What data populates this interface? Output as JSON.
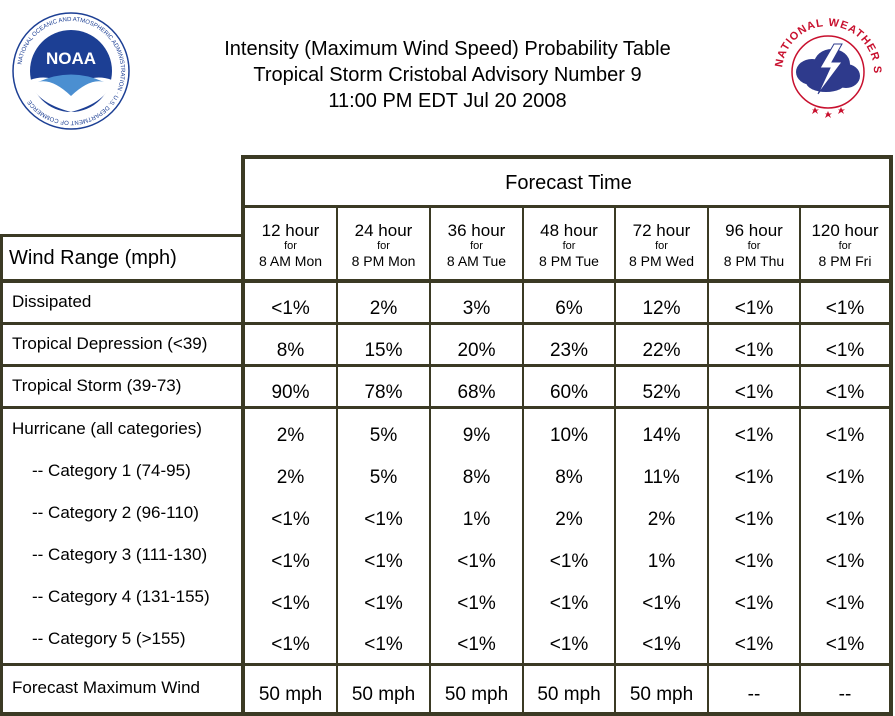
{
  "header": {
    "line1": "Intensity (Maximum Wind Speed) Probability Table",
    "line2": "Tropical Storm Cristobal Advisory Number 9",
    "line3": "11:00 PM EDT Jul 20 2008"
  },
  "logos": {
    "noaa_text": "NOAA",
    "noaa_ring": "NATIONAL OCEANIC AND ATMOSPHERIC ADMINISTRATION · U.S. DEPARTMENT OF COMMERCE",
    "nws_ring": "NATIONAL WEATHER SERVICE"
  },
  "table": {
    "forecast_time_label": "Forecast Time",
    "wind_range_label": "Wind Range (mph)",
    "columns": [
      {
        "hour": "12 hour",
        "for": "for",
        "when": "8 AM Mon"
      },
      {
        "hour": "24 hour",
        "for": "for",
        "when": "8 PM Mon"
      },
      {
        "hour": "36 hour",
        "for": "for",
        "when": "8 AM Tue"
      },
      {
        "hour": "48 hour",
        "for": "for",
        "when": "8 PM Tue"
      },
      {
        "hour": "72 hour",
        "for": "for",
        "when": "8 PM Wed"
      },
      {
        "hour": "96 hour",
        "for": "for",
        "when": "8 PM Thu"
      },
      {
        "hour": "120 hour",
        "for": "for",
        "when": "8 PM Fri"
      }
    ],
    "rows": [
      {
        "label": "Dissipated",
        "values": [
          "<1%",
          "2%",
          "3%",
          "6%",
          "12%",
          "<1%",
          "<1%"
        ]
      },
      {
        "label": "Tropical Depression (<39)",
        "values": [
          "8%",
          "15%",
          "20%",
          "23%",
          "22%",
          "<1%",
          "<1%"
        ]
      },
      {
        "label": "Tropical Storm (39-73)",
        "values": [
          "90%",
          "78%",
          "68%",
          "60%",
          "52%",
          "<1%",
          "<1%"
        ]
      },
      {
        "label": "Hurricane (all categories)",
        "values": [
          "2%",
          "5%",
          "9%",
          "10%",
          "14%",
          "<1%",
          "<1%"
        ]
      },
      {
        "label": "-- Category 1 (74-95)",
        "values": [
          "2%",
          "5%",
          "8%",
          "8%",
          "11%",
          "<1%",
          "<1%"
        ]
      },
      {
        "label": "-- Category 2 (96-110)",
        "values": [
          "<1%",
          "<1%",
          "1%",
          "2%",
          "2%",
          "<1%",
          "<1%"
        ]
      },
      {
        "label": "-- Category 3 (111-130)",
        "values": [
          "<1%",
          "<1%",
          "<1%",
          "<1%",
          "1%",
          "<1%",
          "<1%"
        ]
      },
      {
        "label": "-- Category 4 (131-155)",
        "values": [
          "<1%",
          "<1%",
          "<1%",
          "<1%",
          "<1%",
          "<1%",
          "<1%"
        ]
      },
      {
        "label": "-- Category 5 (>155)",
        "values": [
          "<1%",
          "<1%",
          "<1%",
          "<1%",
          "<1%",
          "<1%",
          "<1%"
        ]
      },
      {
        "label": "Forecast Maximum Wind",
        "values": [
          "50 mph",
          "50 mph",
          "50 mph",
          "50 mph",
          "50 mph",
          "--",
          "--"
        ]
      }
    ]
  },
  "colors": {
    "grid_line": "#3b3a24",
    "noaa_blue": "#1c3f94",
    "nws_red": "#c8102e",
    "nws_cloud": "#2e3a8c"
  }
}
